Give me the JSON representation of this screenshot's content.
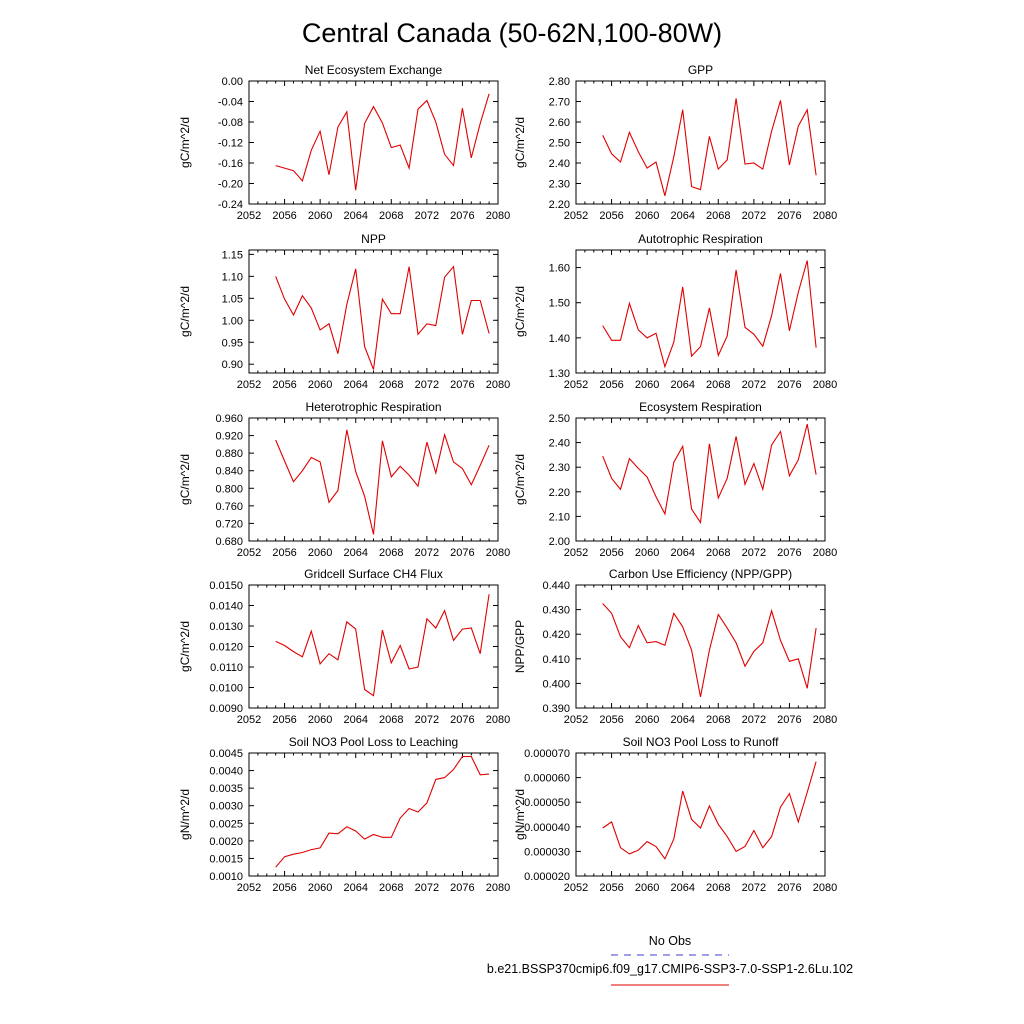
{
  "figure": {
    "title": "Central Canada (50-62N,100-80W)"
  },
  "legend": {
    "entries": [
      {
        "label": "No Obs",
        "color": "#4040d0",
        "dash": true
      },
      {
        "label": "b.e21.BSSP370cmip6.f09_g17.CMIP6-SSP3-7.0-SSP1-2.6Lu.102",
        "color": "#e00000",
        "dash": false
      }
    ]
  },
  "chart_data": [
    {
      "type": "line",
      "title": "Net Ecosystem Exchange",
      "ylabel": "gC/m^2/d",
      "xlim": [
        2052,
        2080
      ],
      "ylim": [
        -0.24,
        0.0
      ],
      "xticks": [
        "2052",
        "2056",
        "2060",
        "2064",
        "2068",
        "2072",
        "2076",
        "2080"
      ],
      "yticks": [
        "0.00",
        "-0.04",
        "-0.08",
        "-0.12",
        "-0.16",
        "-0.20",
        "-0.24"
      ],
      "series": [
        {
          "color": "#e00000",
          "x": [
            2055,
            2056,
            2057,
            2058,
            2059,
            2060,
            2061,
            2062,
            2063,
            2064,
            2065,
            2066,
            2067,
            2068,
            2069,
            2070,
            2071,
            2072,
            2073,
            2074,
            2075,
            2076,
            2077,
            2078,
            2079
          ],
          "y": [
            -0.165,
            -0.17,
            -0.175,
            -0.195,
            -0.135,
            -0.098,
            -0.183,
            -0.09,
            -0.06,
            -0.213,
            -0.083,
            -0.05,
            -0.082,
            -0.13,
            -0.125,
            -0.17,
            -0.055,
            -0.038,
            -0.08,
            -0.143,
            -0.165,
            -0.053,
            -0.15,
            -0.083,
            -0.025
          ]
        }
      ]
    },
    {
      "type": "line",
      "title": "GPP",
      "ylabel": "gC/m^2/d",
      "xlim": [
        2052,
        2080
      ],
      "ylim": [
        2.2,
        2.8
      ],
      "xticks": [
        "2052",
        "2056",
        "2060",
        "2064",
        "2068",
        "2072",
        "2076",
        "2080"
      ],
      "yticks": [
        "2.80",
        "2.70",
        "2.60",
        "2.50",
        "2.40",
        "2.30",
        "2.20"
      ],
      "series": [
        {
          "color": "#e00000",
          "x": [
            2055,
            2056,
            2057,
            2058,
            2059,
            2060,
            2061,
            2062,
            2063,
            2064,
            2065,
            2066,
            2067,
            2068,
            2069,
            2070,
            2071,
            2072,
            2073,
            2074,
            2075,
            2076,
            2077,
            2078,
            2079
          ],
          "y": [
            2.535,
            2.445,
            2.405,
            2.55,
            2.455,
            2.375,
            2.405,
            2.24,
            2.43,
            2.66,
            2.285,
            2.27,
            2.53,
            2.37,
            2.415,
            2.715,
            2.395,
            2.4,
            2.37,
            2.555,
            2.705,
            2.39,
            2.58,
            2.66,
            2.34
          ]
        }
      ]
    },
    {
      "type": "line",
      "title": "NPP",
      "ylabel": "gC/m^2/d",
      "xlim": [
        2052,
        2080
      ],
      "ylim": [
        0.88,
        1.16
      ],
      "xticks": [
        "2052",
        "2056",
        "2060",
        "2064",
        "2068",
        "2072",
        "2076",
        "2080"
      ],
      "yticks": [
        "1.15",
        "1.10",
        "1.05",
        "1.00",
        "0.95",
        "0.90"
      ],
      "series": [
        {
          "color": "#e00000",
          "x": [
            2055,
            2056,
            2057,
            2058,
            2059,
            2060,
            2061,
            2062,
            2063,
            2064,
            2065,
            2066,
            2067,
            2068,
            2069,
            2070,
            2071,
            2072,
            2073,
            2074,
            2075,
            2076,
            2077,
            2078,
            2079
          ],
          "y": [
            1.1,
            1.048,
            1.012,
            1.056,
            1.028,
            0.978,
            0.992,
            0.924,
            1.036,
            1.117,
            0.94,
            0.888,
            1.048,
            1.015,
            1.015,
            1.122,
            0.968,
            0.992,
            0.988,
            1.098,
            1.122,
            0.968,
            1.045,
            1.045,
            0.97
          ]
        }
      ]
    },
    {
      "type": "line",
      "title": "Autotrophic Respiration",
      "ylabel": "gC/m^2/d",
      "xlim": [
        2052,
        2080
      ],
      "ylim": [
        1.3,
        1.65
      ],
      "xticks": [
        "2052",
        "2056",
        "2060",
        "2064",
        "2068",
        "2072",
        "2076",
        "2080"
      ],
      "yticks": [
        "1.60",
        "1.50",
        "1.40",
        "1.30"
      ],
      "series": [
        {
          "color": "#e00000",
          "x": [
            2055,
            2056,
            2057,
            2058,
            2059,
            2060,
            2061,
            2062,
            2063,
            2064,
            2065,
            2066,
            2067,
            2068,
            2069,
            2070,
            2071,
            2072,
            2073,
            2074,
            2075,
            2076,
            2077,
            2078,
            2079
          ],
          "y": [
            1.435,
            1.393,
            1.393,
            1.498,
            1.423,
            1.4,
            1.413,
            1.318,
            1.388,
            1.545,
            1.348,
            1.375,
            1.485,
            1.35,
            1.405,
            1.593,
            1.43,
            1.41,
            1.376,
            1.463,
            1.583,
            1.42,
            1.53,
            1.62,
            1.372
          ]
        }
      ]
    },
    {
      "type": "line",
      "title": "Heterotrophic Respiration",
      "ylabel": "gC/m^2/d",
      "xlim": [
        2052,
        2080
      ],
      "ylim": [
        0.68,
        0.96
      ],
      "xticks": [
        "2052",
        "2056",
        "2060",
        "2064",
        "2068",
        "2072",
        "2076",
        "2080"
      ],
      "yticks": [
        "0.960",
        "0.920",
        "0.880",
        "0.840",
        "0.800",
        "0.760",
        "0.720",
        "0.680"
      ],
      "series": [
        {
          "color": "#e00000",
          "x": [
            2055,
            2056,
            2057,
            2058,
            2059,
            2060,
            2061,
            2062,
            2063,
            2064,
            2065,
            2066,
            2067,
            2068,
            2069,
            2070,
            2071,
            2072,
            2073,
            2074,
            2075,
            2076,
            2077,
            2078,
            2079
          ],
          "y": [
            0.91,
            0.862,
            0.815,
            0.84,
            0.87,
            0.86,
            0.768,
            0.795,
            0.933,
            0.838,
            0.782,
            0.695,
            0.908,
            0.826,
            0.85,
            0.83,
            0.805,
            0.905,
            0.835,
            0.922,
            0.86,
            0.845,
            0.808,
            0.852,
            0.898
          ]
        }
      ]
    },
    {
      "type": "line",
      "title": "Ecosystem Respiration",
      "ylabel": "gC/m^2/d",
      "xlim": [
        2052,
        2080
      ],
      "ylim": [
        2.0,
        2.5
      ],
      "xticks": [
        "2052",
        "2056",
        "2060",
        "2064",
        "2068",
        "2072",
        "2076",
        "2080"
      ],
      "yticks": [
        "2.50",
        "2.40",
        "2.30",
        "2.20",
        "2.10",
        "2.00"
      ],
      "series": [
        {
          "color": "#e00000",
          "x": [
            2055,
            2056,
            2057,
            2058,
            2059,
            2060,
            2061,
            2062,
            2063,
            2064,
            2065,
            2066,
            2067,
            2068,
            2069,
            2070,
            2071,
            2072,
            2073,
            2074,
            2075,
            2076,
            2077,
            2078,
            2079
          ],
          "y": [
            2.345,
            2.255,
            2.21,
            2.335,
            2.295,
            2.26,
            2.18,
            2.11,
            2.32,
            2.385,
            2.13,
            2.075,
            2.395,
            2.175,
            2.255,
            2.425,
            2.23,
            2.315,
            2.21,
            2.39,
            2.445,
            2.265,
            2.33,
            2.475,
            2.27
          ]
        }
      ]
    },
    {
      "type": "line",
      "title": "Gridcell Surface CH4 Flux",
      "ylabel": "gC/m^2/d",
      "xlim": [
        2052,
        2080
      ],
      "ylim": [
        0.009,
        0.015
      ],
      "xticks": [
        "2052",
        "2056",
        "2060",
        "2064",
        "2068",
        "2072",
        "2076",
        "2080"
      ],
      "yticks": [
        "0.0150",
        "0.0140",
        "0.0130",
        "0.0120",
        "0.0110",
        "0.0100",
        "0.0090"
      ],
      "series": [
        {
          "color": "#e00000",
          "x": [
            2055,
            2056,
            2057,
            2058,
            2059,
            2060,
            2061,
            2062,
            2063,
            2064,
            2065,
            2066,
            2067,
            2068,
            2069,
            2070,
            2071,
            2072,
            2073,
            2074,
            2075,
            2076,
            2077,
            2078,
            2079
          ],
          "y": [
            0.01225,
            0.01205,
            0.01175,
            0.0115,
            0.01275,
            0.01115,
            0.01165,
            0.01135,
            0.0132,
            0.01285,
            0.0099,
            0.0096,
            0.0128,
            0.0112,
            0.01205,
            0.0109,
            0.011,
            0.01335,
            0.0129,
            0.01375,
            0.0123,
            0.01285,
            0.0129,
            0.01165,
            0.01455
          ]
        }
      ]
    },
    {
      "type": "line",
      "title": "Carbon Use Efficiency (NPP/GPP)",
      "ylabel": "NPP/GPP",
      "xlim": [
        2052,
        2080
      ],
      "ylim": [
        0.39,
        0.44
      ],
      "xticks": [
        "2052",
        "2056",
        "2060",
        "2064",
        "2068",
        "2072",
        "2076",
        "2080"
      ],
      "yticks": [
        "0.440",
        "0.430",
        "0.420",
        "0.410",
        "0.400",
        "0.390"
      ],
      "series": [
        {
          "color": "#e00000",
          "x": [
            2055,
            2056,
            2057,
            2058,
            2059,
            2060,
            2061,
            2062,
            2063,
            2064,
            2065,
            2066,
            2067,
            2068,
            2069,
            2070,
            2071,
            2072,
            2073,
            2074,
            2075,
            2076,
            2077,
            2078,
            2079
          ],
          "y": [
            0.4325,
            0.4285,
            0.419,
            0.4145,
            0.4235,
            0.4165,
            0.417,
            0.4155,
            0.4285,
            0.423,
            0.4135,
            0.3945,
            0.4135,
            0.428,
            0.4225,
            0.4165,
            0.407,
            0.413,
            0.4165,
            0.4295,
            0.4175,
            0.409,
            0.41,
            0.398,
            0.4225
          ]
        }
      ]
    },
    {
      "type": "line",
      "title": "Soil NO3 Pool Loss to Leaching",
      "ylabel": "gN/m^2/d",
      "xlim": [
        2052,
        2080
      ],
      "ylim": [
        0.001,
        0.0045
      ],
      "xticks": [
        "2052",
        "2056",
        "2060",
        "2064",
        "2068",
        "2072",
        "2076",
        "2080"
      ],
      "yticks": [
        "0.0045",
        "0.0040",
        "0.0035",
        "0.0030",
        "0.0025",
        "0.0020",
        "0.0015",
        "0.0010"
      ],
      "series": [
        {
          "color": "#e00000",
          "x": [
            2055,
            2056,
            2057,
            2058,
            2059,
            2060,
            2061,
            2062,
            2063,
            2064,
            2065,
            2066,
            2067,
            2068,
            2069,
            2070,
            2071,
            2072,
            2073,
            2074,
            2075,
            2076,
            2077,
            2078,
            2079
          ],
          "y": [
            0.00125,
            0.00155,
            0.00162,
            0.00167,
            0.00175,
            0.0018,
            0.00222,
            0.0022,
            0.0024,
            0.00228,
            0.00205,
            0.00218,
            0.0021,
            0.0021,
            0.00265,
            0.00292,
            0.00282,
            0.00308,
            0.00375,
            0.0038,
            0.00403,
            0.0044,
            0.0044,
            0.00388,
            0.0039
          ]
        }
      ]
    },
    {
      "type": "line",
      "title": "Soil NO3 Pool Loss to Runoff",
      "ylabel": "gN/m^2/d",
      "xlim": [
        2052,
        2080
      ],
      "ylim": [
        2e-05,
        7e-05
      ],
      "xticks": [
        "2052",
        "2056",
        "2060",
        "2064",
        "2068",
        "2072",
        "2076",
        "2080"
      ],
      "yticks": [
        "0.000070",
        "0.000060",
        "0.000050",
        "0.000040",
        "0.000030",
        "0.000020"
      ],
      "series": [
        {
          "color": "#e00000",
          "x": [
            2055,
            2056,
            2057,
            2058,
            2059,
            2060,
            2061,
            2062,
            2063,
            2064,
            2065,
            2066,
            2067,
            2068,
            2069,
            2070,
            2071,
            2072,
            2073,
            2074,
            2075,
            2076,
            2077,
            2078,
            2079
          ],
          "y": [
            3.95e-05,
            4.2e-05,
            3.15e-05,
            2.9e-05,
            3.05e-05,
            3.4e-05,
            3.2e-05,
            2.7e-05,
            3.5e-05,
            5.45e-05,
            4.3e-05,
            3.95e-05,
            4.85e-05,
            4.1e-05,
            3.6e-05,
            3e-05,
            3.2e-05,
            3.85e-05,
            3.15e-05,
            3.6e-05,
            4.8e-05,
            5.35e-05,
            4.2e-05,
            5.4e-05,
            6.65e-05
          ]
        }
      ]
    }
  ]
}
